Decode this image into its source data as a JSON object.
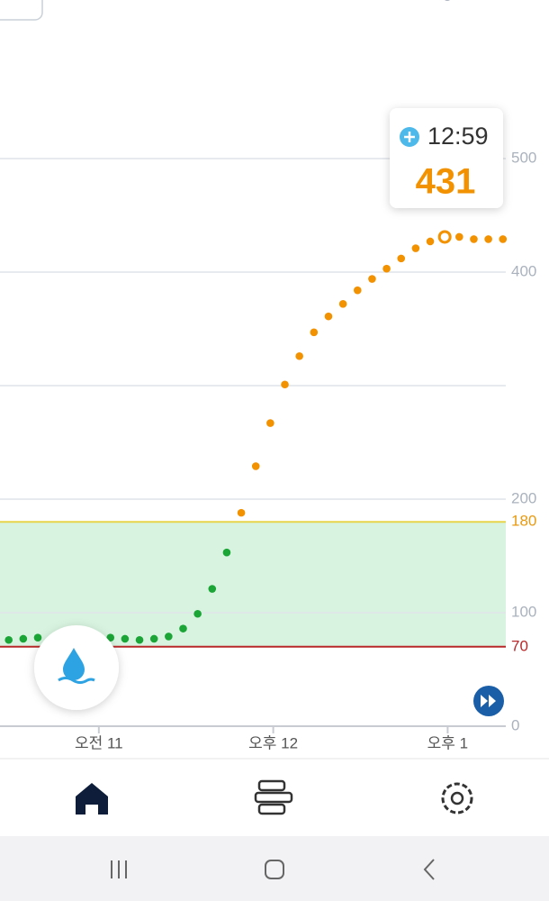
{
  "chart_data": {
    "type": "scatter",
    "x": [
      "10:29",
      "10:34",
      "10:39",
      "11:04",
      "11:09",
      "11:14",
      "11:19",
      "11:24",
      "11:29",
      "11:34",
      "11:39",
      "11:44",
      "11:49",
      "11:54",
      "11:59",
      "12:04",
      "12:09",
      "12:14",
      "12:19",
      "12:24",
      "12:29",
      "12:34",
      "12:39",
      "12:44",
      "12:49",
      "12:54",
      "12:59",
      "13:04",
      "13:09",
      "13:14",
      "13:19"
    ],
    "values": [
      76,
      77,
      78,
      78,
      77,
      76,
      77,
      79,
      86,
      99,
      121,
      153,
      188,
      229,
      267,
      301,
      326,
      347,
      361,
      372,
      384,
      394,
      403,
      412,
      421,
      427,
      431,
      431,
      429,
      429,
      429
    ],
    "xlim": [
      "10:26",
      "13:20"
    ],
    "xticks": [
      {
        "value": "11:00",
        "label": "오전 11"
      },
      {
        "value": "12:00",
        "label": "오후 12"
      },
      {
        "value": "13:00",
        "label": "오후 1"
      }
    ],
    "ylim": [
      0,
      500
    ],
    "yticks": [
      0,
      100,
      200,
      400,
      500
    ],
    "gridlines": [
      100,
      200,
      300,
      400,
      500
    ],
    "target_range": {
      "low": 70,
      "high": 180,
      "low_color": "#b8282a",
      "high_color": "#e89a10",
      "fill": "#d8f4e0"
    },
    "in_range_color": "#1aa536",
    "high_color": "#f39200"
  }
}
